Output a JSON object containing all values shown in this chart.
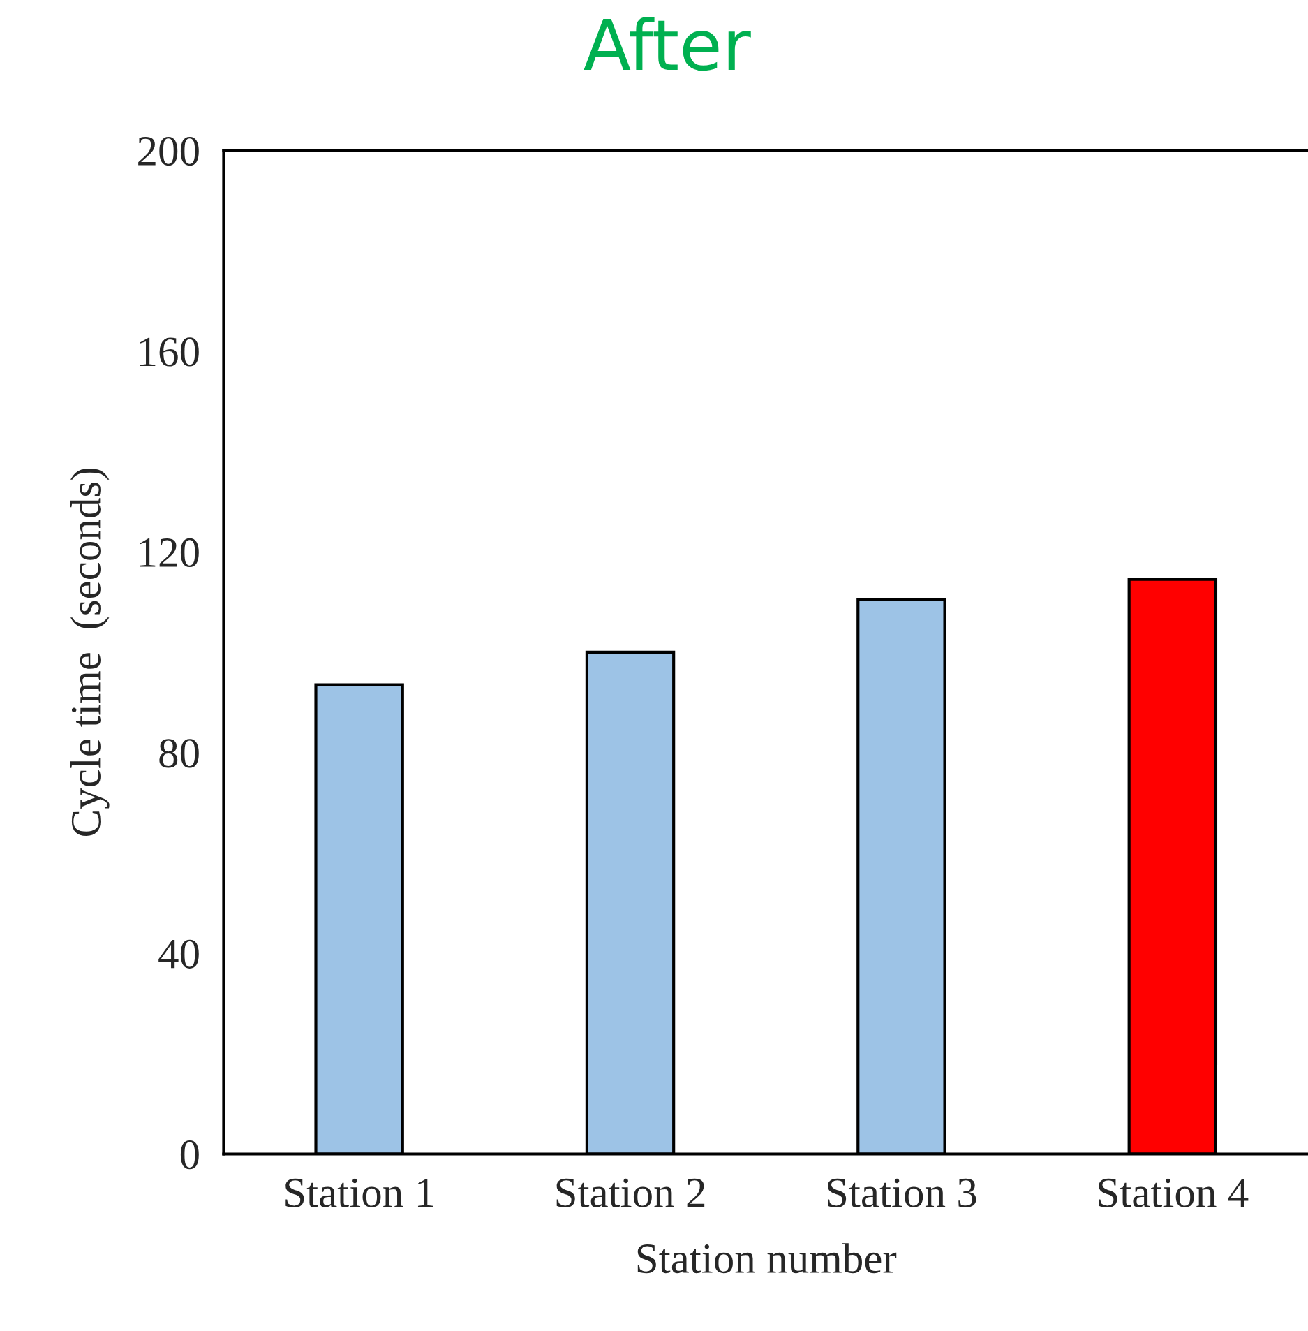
{
  "chart_data": {
    "type": "bar",
    "title": "After",
    "xlabel": "Station number",
    "ylabel": "Cycle time  (seconds)",
    "categories": [
      "Station 1",
      "Station 2",
      "Station 3",
      "Station 4"
    ],
    "values": [
      93.5,
      100,
      110.5,
      114.5
    ],
    "colors": [
      "#9dc3e6",
      "#9dc3e6",
      "#9dc3e6",
      "#ff0000"
    ],
    "ylim": [
      0,
      200
    ],
    "yticks": [
      0,
      40,
      80,
      120,
      160,
      200
    ],
    "grid": false,
    "legend": false
  }
}
